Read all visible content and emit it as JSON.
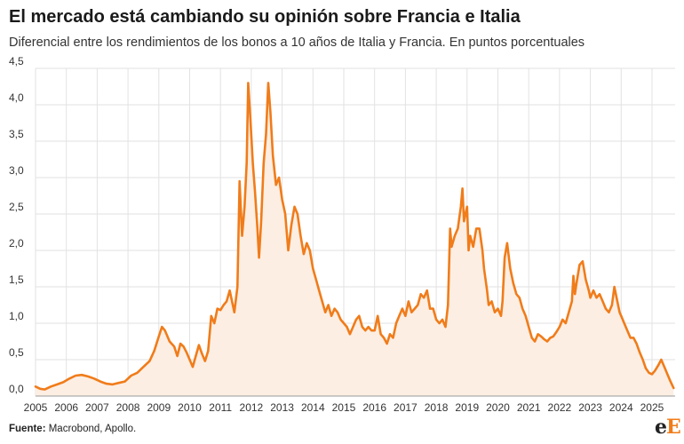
{
  "title": "El mercado está cambiando su opinión sobre Francia e Italia",
  "subtitle": "Diferencial entre los rendimientos de los bonos a 10 años de Italia y Francia. En puntos porcentuales",
  "source_label": "Fuente:",
  "source_text": " Macrobond, Apollo.",
  "logo": {
    "first": "e",
    "second": "E"
  },
  "chart_data": {
    "type": "area",
    "title": "El mercado está cambiando su opinión sobre Francia e Italia",
    "xlabel": "",
    "ylabel": "",
    "xlim": [
      2005.0,
      2025.75
    ],
    "ylim": [
      0,
      4.5
    ],
    "grid": true,
    "color": "#f07c1a",
    "fill_color": "#fdeee3",
    "y_ticks": [
      {
        "value": 0.0,
        "label": "0,0"
      },
      {
        "value": 0.5,
        "label": "0,5"
      },
      {
        "value": 1.0,
        "label": "1,0"
      },
      {
        "value": 1.5,
        "label": "1,5"
      },
      {
        "value": 2.0,
        "label": "2,0"
      },
      {
        "value": 2.5,
        "label": "2,5"
      },
      {
        "value": 3.0,
        "label": "3,0"
      },
      {
        "value": 3.5,
        "label": "3,5"
      },
      {
        "value": 4.0,
        "label": "4,0"
      },
      {
        "value": 4.5,
        "label": "4,5"
      }
    ],
    "x_ticks": [
      "2005",
      "2006",
      "2007",
      "2008",
      "2009",
      "2010",
      "2011",
      "2012",
      "2013",
      "2014",
      "2015",
      "2016",
      "2017",
      "2018",
      "2019",
      "2020",
      "2021",
      "2022",
      "2023",
      "2024",
      "2025"
    ],
    "points": [
      [
        2005.0,
        0.13
      ],
      [
        2005.15,
        0.1
      ],
      [
        2005.3,
        0.09
      ],
      [
        2005.5,
        0.13
      ],
      [
        2005.7,
        0.16
      ],
      [
        2005.9,
        0.19
      ],
      [
        2006.1,
        0.24
      ],
      [
        2006.3,
        0.28
      ],
      [
        2006.5,
        0.29
      ],
      [
        2006.7,
        0.27
      ],
      [
        2006.9,
        0.24
      ],
      [
        2007.1,
        0.2
      ],
      [
        2007.3,
        0.17
      ],
      [
        2007.5,
        0.16
      ],
      [
        2007.7,
        0.18
      ],
      [
        2007.9,
        0.2
      ],
      [
        2008.1,
        0.28
      ],
      [
        2008.3,
        0.32
      ],
      [
        2008.5,
        0.4
      ],
      [
        2008.7,
        0.48
      ],
      [
        2008.85,
        0.62
      ],
      [
        2009.0,
        0.82
      ],
      [
        2009.1,
        0.95
      ],
      [
        2009.2,
        0.9
      ],
      [
        2009.35,
        0.75
      ],
      [
        2009.5,
        0.68
      ],
      [
        2009.6,
        0.55
      ],
      [
        2009.7,
        0.72
      ],
      [
        2009.8,
        0.68
      ],
      [
        2009.9,
        0.6
      ],
      [
        2010.0,
        0.5
      ],
      [
        2010.1,
        0.4
      ],
      [
        2010.2,
        0.55
      ],
      [
        2010.3,
        0.7
      ],
      [
        2010.4,
        0.58
      ],
      [
        2010.5,
        0.48
      ],
      [
        2010.6,
        0.62
      ],
      [
        2010.7,
        1.1
      ],
      [
        2010.8,
        1.0
      ],
      [
        2010.9,
        1.2
      ],
      [
        2011.0,
        1.18
      ],
      [
        2011.1,
        1.25
      ],
      [
        2011.2,
        1.3
      ],
      [
        2011.3,
        1.45
      ],
      [
        2011.45,
        1.15
      ],
      [
        2011.55,
        1.5
      ],
      [
        2011.62,
        2.95
      ],
      [
        2011.7,
        2.2
      ],
      [
        2011.78,
        2.6
      ],
      [
        2011.85,
        3.2
      ],
      [
        2011.9,
        4.3
      ],
      [
        2011.97,
        3.8
      ],
      [
        2012.05,
        3.2
      ],
      [
        2012.12,
        2.8
      ],
      [
        2012.2,
        2.3
      ],
      [
        2012.25,
        1.9
      ],
      [
        2012.32,
        2.4
      ],
      [
        2012.4,
        3.2
      ],
      [
        2012.48,
        3.6
      ],
      [
        2012.55,
        4.3
      ],
      [
        2012.62,
        3.9
      ],
      [
        2012.7,
        3.3
      ],
      [
        2012.8,
        2.9
      ],
      [
        2012.9,
        3.0
      ],
      [
        2013.0,
        2.7
      ],
      [
        2013.1,
        2.5
      ],
      [
        2013.2,
        2.0
      ],
      [
        2013.3,
        2.35
      ],
      [
        2013.4,
        2.6
      ],
      [
        2013.5,
        2.5
      ],
      [
        2013.6,
        2.2
      ],
      [
        2013.7,
        1.95
      ],
      [
        2013.8,
        2.1
      ],
      [
        2013.9,
        2.0
      ],
      [
        2014.0,
        1.75
      ],
      [
        2014.1,
        1.6
      ],
      [
        2014.2,
        1.45
      ],
      [
        2014.3,
        1.3
      ],
      [
        2014.4,
        1.15
      ],
      [
        2014.5,
        1.25
      ],
      [
        2014.6,
        1.1
      ],
      [
        2014.7,
        1.2
      ],
      [
        2014.8,
        1.15
      ],
      [
        2014.9,
        1.05
      ],
      [
        2015.0,
        1.0
      ],
      [
        2015.1,
        0.95
      ],
      [
        2015.2,
        0.85
      ],
      [
        2015.3,
        0.95
      ],
      [
        2015.4,
        1.05
      ],
      [
        2015.5,
        1.1
      ],
      [
        2015.6,
        0.95
      ],
      [
        2015.7,
        0.9
      ],
      [
        2015.8,
        0.95
      ],
      [
        2015.9,
        0.9
      ],
      [
        2016.0,
        0.9
      ],
      [
        2016.1,
        1.1
      ],
      [
        2016.2,
        0.85
      ],
      [
        2016.3,
        0.8
      ],
      [
        2016.4,
        0.72
      ],
      [
        2016.5,
        0.85
      ],
      [
        2016.6,
        0.8
      ],
      [
        2016.7,
        1.0
      ],
      [
        2016.8,
        1.1
      ],
      [
        2016.9,
        1.2
      ],
      [
        2017.0,
        1.1
      ],
      [
        2017.1,
        1.3
      ],
      [
        2017.2,
        1.15
      ],
      [
        2017.3,
        1.2
      ],
      [
        2017.4,
        1.25
      ],
      [
        2017.5,
        1.4
      ],
      [
        2017.6,
        1.35
      ],
      [
        2017.7,
        1.45
      ],
      [
        2017.8,
        1.2
      ],
      [
        2017.9,
        1.2
      ],
      [
        2018.0,
        1.05
      ],
      [
        2018.1,
        1.0
      ],
      [
        2018.2,
        1.05
      ],
      [
        2018.3,
        0.95
      ],
      [
        2018.38,
        1.25
      ],
      [
        2018.45,
        2.3
      ],
      [
        2018.5,
        2.05
      ],
      [
        2018.6,
        2.2
      ],
      [
        2018.7,
        2.3
      ],
      [
        2018.8,
        2.6
      ],
      [
        2018.85,
        2.85
      ],
      [
        2018.9,
        2.4
      ],
      [
        2019.0,
        2.6
      ],
      [
        2019.05,
        2.0
      ],
      [
        2019.1,
        2.2
      ],
      [
        2019.2,
        2.05
      ],
      [
        2019.3,
        2.3
      ],
      [
        2019.4,
        2.3
      ],
      [
        2019.5,
        2.0
      ],
      [
        2019.55,
        1.75
      ],
      [
        2019.65,
        1.45
      ],
      [
        2019.7,
        1.25
      ],
      [
        2019.8,
        1.3
      ],
      [
        2019.9,
        1.15
      ],
      [
        2020.0,
        1.2
      ],
      [
        2020.1,
        1.1
      ],
      [
        2020.15,
        1.3
      ],
      [
        2020.22,
        1.9
      ],
      [
        2020.3,
        2.1
      ],
      [
        2020.4,
        1.75
      ],
      [
        2020.5,
        1.55
      ],
      [
        2020.6,
        1.4
      ],
      [
        2020.7,
        1.35
      ],
      [
        2020.8,
        1.2
      ],
      [
        2020.9,
        1.1
      ],
      [
        2021.0,
        0.95
      ],
      [
        2021.1,
        0.8
      ],
      [
        2021.2,
        0.75
      ],
      [
        2021.3,
        0.85
      ],
      [
        2021.4,
        0.82
      ],
      [
        2021.5,
        0.78
      ],
      [
        2021.6,
        0.75
      ],
      [
        2021.7,
        0.8
      ],
      [
        2021.8,
        0.82
      ],
      [
        2021.9,
        0.88
      ],
      [
        2022.0,
        0.95
      ],
      [
        2022.1,
        1.05
      ],
      [
        2022.2,
        1.0
      ],
      [
        2022.3,
        1.15
      ],
      [
        2022.4,
        1.3
      ],
      [
        2022.45,
        1.65
      ],
      [
        2022.5,
        1.4
      ],
      [
        2022.55,
        1.55
      ],
      [
        2022.65,
        1.8
      ],
      [
        2022.75,
        1.85
      ],
      [
        2022.85,
        1.6
      ],
      [
        2022.95,
        1.45
      ],
      [
        2023.0,
        1.35
      ],
      [
        2023.1,
        1.45
      ],
      [
        2023.2,
        1.35
      ],
      [
        2023.3,
        1.4
      ],
      [
        2023.4,
        1.3
      ],
      [
        2023.5,
        1.2
      ],
      [
        2023.6,
        1.15
      ],
      [
        2023.7,
        1.25
      ],
      [
        2023.78,
        1.5
      ],
      [
        2023.85,
        1.35
      ],
      [
        2023.95,
        1.15
      ],
      [
        2024.0,
        1.1
      ],
      [
        2024.1,
        1.0
      ],
      [
        2024.2,
        0.9
      ],
      [
        2024.3,
        0.8
      ],
      [
        2024.4,
        0.8
      ],
      [
        2024.5,
        0.72
      ],
      [
        2024.6,
        0.6
      ],
      [
        2024.7,
        0.5
      ],
      [
        2024.8,
        0.38
      ],
      [
        2024.9,
        0.32
      ],
      [
        2025.0,
        0.3
      ],
      [
        2025.1,
        0.35
      ],
      [
        2025.2,
        0.42
      ],
      [
        2025.3,
        0.5
      ],
      [
        2025.4,
        0.4
      ],
      [
        2025.5,
        0.3
      ],
      [
        2025.6,
        0.2
      ],
      [
        2025.7,
        0.11
      ]
    ]
  }
}
